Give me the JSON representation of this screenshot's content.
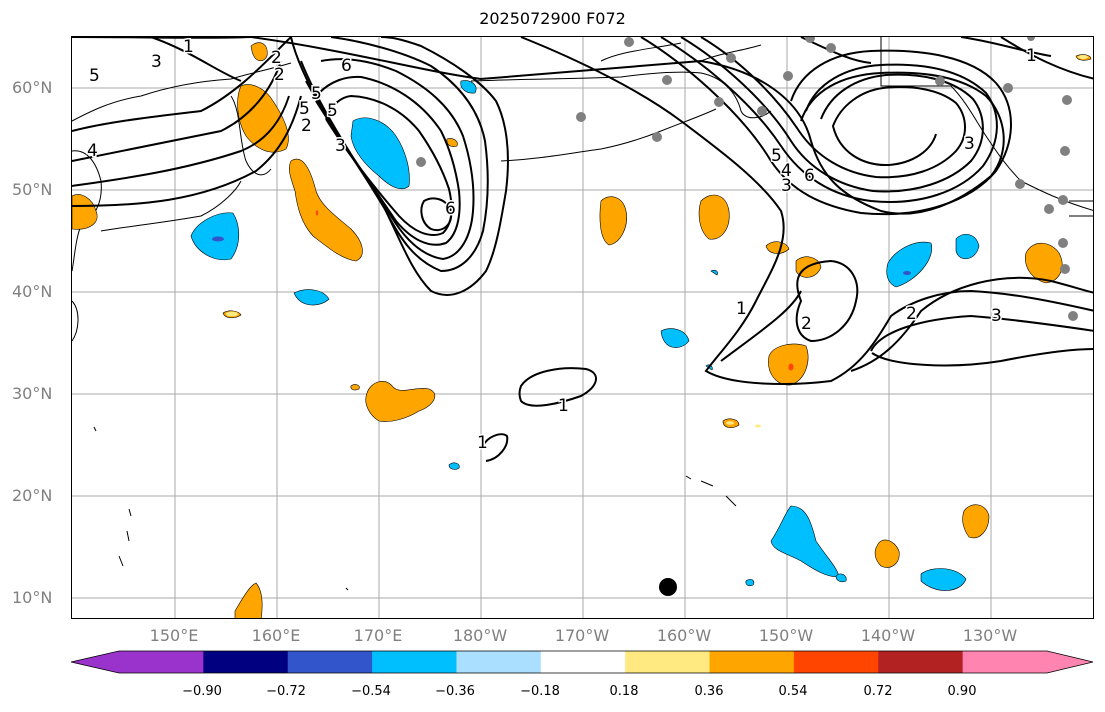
{
  "title": "2025072900 F072",
  "lat_labels": [
    {
      "text": "60°N"
    },
    {
      "text": "50°N"
    },
    {
      "text": "40°N"
    },
    {
      "text": "30°N"
    },
    {
      "text": "20°N"
    },
    {
      "text": "10°N"
    }
  ],
  "lon_labels": [
    {
      "text": "150°E"
    },
    {
      "text": "160°E"
    },
    {
      "text": "170°E"
    },
    {
      "text": "180°W"
    },
    {
      "text": "170°W"
    },
    {
      "text": "160°W"
    },
    {
      "text": "150°W"
    },
    {
      "text": "140°W"
    },
    {
      "text": "130°W"
    }
  ],
  "colorbar": {
    "colors": [
      "#9933cc",
      "#000080",
      "#3355cc",
      "#00bfff",
      "#aadfff",
      "#ffffff",
      "#ffe980",
      "#ffa500",
      "#ff4500",
      "#b22222",
      "#ff85b0",
      "#ff85b0"
    ],
    "tick_labels": [
      "−0.90",
      "−0.72",
      "−0.54",
      "−0.36",
      "−0.18",
      "0.18",
      "0.36",
      "0.54",
      "0.72",
      "0.90"
    ]
  },
  "contour_labels": [
    "1",
    "2",
    "3",
    "5",
    "4",
    "6",
    "5",
    "3",
    "2",
    "6",
    "5",
    "4",
    "3",
    "6",
    "1",
    "2",
    "3",
    "1",
    "1",
    "3",
    "2",
    "5",
    "1",
    "5",
    "2"
  ],
  "colors": {
    "positive_fill": "#ffa500",
    "negative_fill": "#00bfff",
    "grid": "#aaaaaa",
    "station_dot": "#808080",
    "marker": "#000000"
  }
}
